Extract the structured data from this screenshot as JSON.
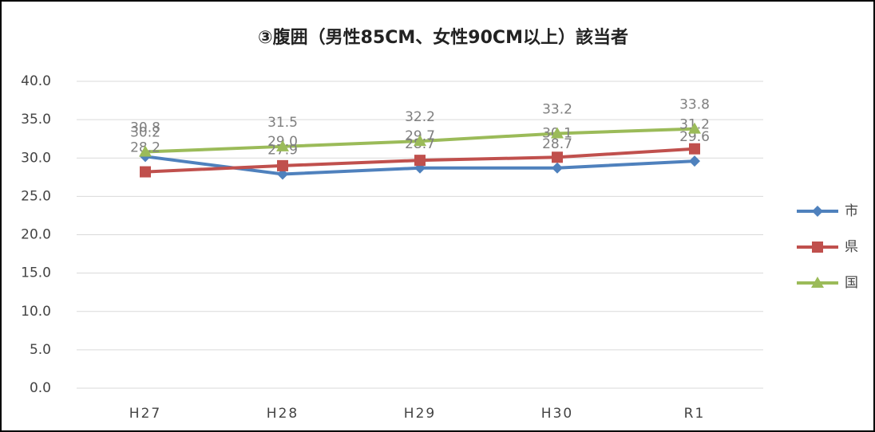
{
  "chart_data": {
    "type": "line",
    "title": "③腹囲（男性85CM、女性90CM以上）該当者",
    "categories": [
      "H27",
      "H28",
      "H29",
      "H30",
      "R1"
    ],
    "series": [
      {
        "name": "市",
        "color": "#4f81bd",
        "marker": "diamond",
        "values": [
          30.2,
          27.9,
          28.7,
          28.7,
          29.6
        ],
        "value_labels": [
          "30.2",
          "27.9",
          "28.7",
          "28.7",
          "29.6"
        ]
      },
      {
        "name": "県",
        "color": "#c0504d",
        "marker": "square",
        "values": [
          28.2,
          29.0,
          29.7,
          30.1,
          31.2
        ],
        "value_labels": [
          "28.2",
          "29.0",
          "29.7",
          "30.1",
          "31.2"
        ]
      },
      {
        "name": "国",
        "color": "#9bbb59",
        "marker": "triangle",
        "values": [
          30.8,
          31.5,
          32.2,
          33.2,
          33.8
        ],
        "value_labels": [
          "30.8",
          "31.5",
          "32.2",
          "33.2",
          "33.8"
        ]
      }
    ],
    "ylim": [
      0,
      40
    ],
    "yticks": [
      {
        "value": 0,
        "label": "0.0"
      },
      {
        "value": 5,
        "label": "5.0"
      },
      {
        "value": 10,
        "label": "10.0"
      },
      {
        "value": 15,
        "label": "15.0"
      },
      {
        "value": 20,
        "label": "20.0"
      },
      {
        "value": 25,
        "label": "25.0"
      },
      {
        "value": 30,
        "label": "30.0"
      },
      {
        "value": 35,
        "label": "35.0"
      },
      {
        "value": 40,
        "label": "40.0"
      }
    ],
    "grid": true,
    "legend": "right"
  }
}
